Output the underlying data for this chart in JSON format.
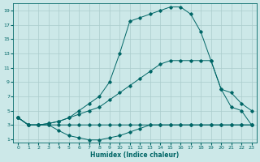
{
  "xlabel": "Humidex (Indice chaleur)",
  "ylabel": "",
  "background_color": "#cce8e8",
  "grid_color": "#aacccc",
  "line_color": "#006666",
  "xlim": [
    -0.5,
    23.5
  ],
  "ylim": [
    0.5,
    20
  ],
  "xticks": [
    0,
    1,
    2,
    3,
    4,
    5,
    6,
    7,
    8,
    9,
    10,
    11,
    12,
    13,
    14,
    15,
    16,
    17,
    18,
    19,
    20,
    21,
    22,
    23
  ],
  "yticks": [
    1,
    3,
    5,
    7,
    9,
    11,
    13,
    15,
    17,
    19
  ],
  "lines": [
    {
      "x": [
        0,
        1,
        2,
        3,
        4,
        5,
        6,
        7,
        8,
        9,
        10,
        11,
        12,
        13,
        14,
        15,
        16,
        17,
        18,
        19,
        20,
        21,
        22,
        23
      ],
      "y": [
        4,
        3,
        3,
        3,
        3,
        3,
        3,
        3,
        3,
        3,
        3,
        3,
        3,
        3,
        3,
        3,
        3,
        3,
        3,
        3,
        3,
        3,
        3,
        3
      ]
    },
    {
      "x": [
        0,
        1,
        2,
        3,
        4,
        5,
        6,
        7,
        8,
        9,
        10,
        11,
        12,
        13,
        14,
        15,
        16,
        17,
        18,
        19,
        20,
        21,
        22,
        23
      ],
      "y": [
        4,
        3,
        3,
        3,
        2.2,
        1.5,
        1.2,
        0.9,
        0.9,
        1.2,
        1.5,
        2,
        2.5,
        3,
        3,
        3,
        3,
        3,
        3,
        3,
        3,
        3,
        3,
        3
      ]
    },
    {
      "x": [
        0,
        1,
        2,
        3,
        4,
        5,
        6,
        7,
        8,
        9,
        10,
        11,
        12,
        13,
        14,
        15,
        16,
        17,
        18,
        19,
        20,
        21,
        22,
        23
      ],
      "y": [
        4,
        3,
        3,
        3.2,
        3.5,
        4,
        4.5,
        5,
        5.5,
        6.5,
        7.5,
        8.5,
        9.5,
        10.5,
        11.5,
        12,
        12,
        12,
        12,
        12,
        8,
        5.5,
        5,
        3
      ]
    },
    {
      "x": [
        0,
        1,
        2,
        3,
        4,
        5,
        6,
        7,
        8,
        9,
        10,
        11,
        12,
        13,
        14,
        15,
        16,
        17,
        18,
        19,
        20,
        21,
        22,
        23
      ],
      "y": [
        4,
        3,
        3,
        3.2,
        3.5,
        4,
        5,
        6,
        7,
        9,
        13,
        17.5,
        18,
        18.5,
        19,
        19.5,
        19.5,
        18.5,
        16,
        12,
        8,
        7.5,
        6,
        5
      ]
    }
  ]
}
